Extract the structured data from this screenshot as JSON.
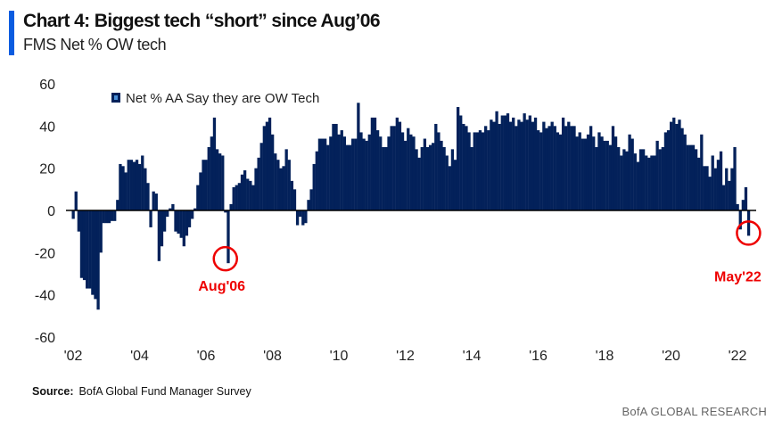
{
  "header": {
    "title": "Chart 4: Biggest tech “short” since Aug’06",
    "subtitle": "FMS Net % OW tech"
  },
  "footer": {
    "source_label": "Source:",
    "source_text": "BofA Global Fund Manager Survey",
    "brand": "BofA GLOBAL RESEARCH"
  },
  "chart_data": {
    "type": "bar",
    "title": "Chart 4: Biggest tech “short” since Aug’06",
    "subtitle": "FMS Net % OW tech",
    "frequency": "monthly",
    "start": "2002-01",
    "end": "2022-05",
    "ylim": [
      -60,
      60
    ],
    "yticks": [
      60,
      40,
      20,
      0,
      -20,
      -40,
      -60
    ],
    "xticks": [
      "'02",
      "'04",
      "'06",
      "'08",
      "'10",
      "'12",
      "'14",
      "'16",
      "'18",
      "'20",
      "'22"
    ],
    "grid": false,
    "legend_position": "top-left",
    "colors": {
      "bar": "#03215a",
      "annotation": "#ee0000"
    },
    "series": [
      {
        "name": "Net % AA Say they are OW Tech",
        "values": [
          -4,
          9,
          -10,
          -32,
          -33,
          -37,
          -37,
          -40,
          -42,
          -47,
          -20,
          -6,
          -6,
          -6,
          -5,
          -5,
          5,
          22,
          21,
          18,
          24,
          24,
          23,
          24,
          22,
          26,
          20,
          13,
          -8,
          9,
          8,
          -24,
          -17,
          -10,
          -3,
          1,
          3,
          -10,
          -11,
          -13,
          -17,
          -12,
          -8,
          -4,
          1,
          12,
          18,
          24,
          24,
          30,
          35,
          44,
          29,
          27,
          26,
          -1,
          -25,
          3,
          11,
          12,
          13,
          17,
          19,
          15,
          14,
          12,
          20,
          25,
          32,
          40,
          42,
          44,
          36,
          27,
          24,
          20,
          21,
          29,
          24,
          14,
          10,
          -7,
          -3,
          -7,
          -6,
          5,
          10,
          22,
          28,
          34,
          34,
          34,
          31,
          35,
          41,
          41,
          36,
          38,
          35,
          31,
          31,
          34,
          34,
          51,
          37,
          34,
          33,
          36,
          44,
          44,
          38,
          35,
          30,
          30,
          35,
          40,
          40,
          44,
          42,
          37,
          33,
          39,
          36,
          35,
          29,
          25,
          30,
          34,
          30,
          31,
          32,
          41,
          37,
          33,
          30,
          26,
          21,
          29,
          24,
          49,
          45,
          41,
          40,
          37,
          30,
          37,
          37,
          38,
          37,
          40,
          38,
          43,
          42,
          47,
          41,
          45,
          45,
          46,
          42,
          44,
          40,
          43,
          42,
          46,
          43,
          45,
          42,
          44,
          38,
          37,
          42,
          39,
          40,
          42,
          40,
          37,
          36,
          44,
          40,
          42,
          40,
          40,
          35,
          37,
          34,
          34,
          36,
          40,
          35,
          30,
          37,
          35,
          33,
          33,
          31,
          40,
          35,
          30,
          26,
          29,
          28,
          36,
          34,
          27,
          23,
          29,
          29,
          26,
          25,
          26,
          26,
          33,
          29,
          30,
          37,
          38,
          42,
          44,
          41,
          43,
          39,
          36,
          31,
          31,
          31,
          29,
          25,
          36,
          21,
          21,
          16,
          26,
          20,
          24,
          28,
          12,
          20,
          14,
          20,
          30,
          3,
          -9,
          5,
          11,
          -12
        ]
      }
    ],
    "annotations": [
      {
        "label": "Aug'06",
        "date": "2006-08",
        "value": -25
      },
      {
        "label": "May'22",
        "date": "2022-05",
        "value": -12
      }
    ]
  }
}
